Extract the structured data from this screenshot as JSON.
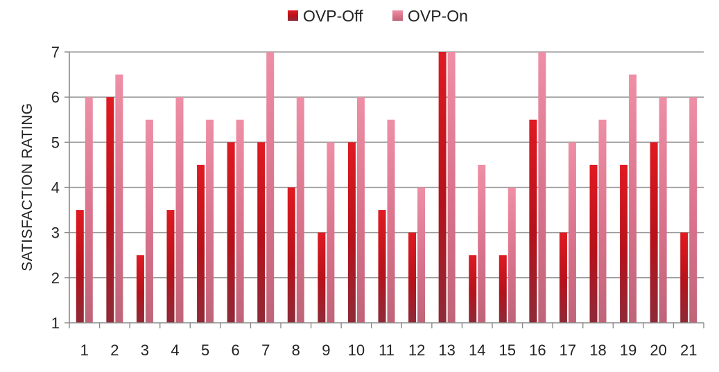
{
  "chart_data": {
    "type": "bar",
    "title": "",
    "xlabel": "",
    "ylabel": "SATISFACTION RATING",
    "ylim": [
      1,
      7
    ],
    "yticks": [
      1,
      2,
      3,
      4,
      5,
      6,
      7
    ],
    "grid": true,
    "legend_position": "top-center",
    "categories": [
      "1",
      "2",
      "3",
      "4",
      "5",
      "6",
      "7",
      "8",
      "9",
      "10",
      "11",
      "12",
      "13",
      "14",
      "15",
      "16",
      "17",
      "18",
      "19",
      "20",
      "21"
    ],
    "series": [
      {
        "name": "OVP-Off",
        "color": "#b5121b",
        "values": [
          3.5,
          6,
          2.5,
          3.5,
          4.5,
          5,
          5,
          4,
          3,
          5,
          3.5,
          3,
          7,
          2.5,
          2.5,
          5.5,
          3,
          4.5,
          4.5,
          5,
          3
        ]
      },
      {
        "name": "OVP-On",
        "color": "#d9728c",
        "values": [
          6,
          6.5,
          5.5,
          6,
          5.5,
          5.5,
          7,
          6,
          5,
          6,
          5.5,
          4,
          7,
          4.5,
          4,
          7,
          5,
          5.5,
          6.5,
          6,
          6
        ]
      }
    ]
  }
}
